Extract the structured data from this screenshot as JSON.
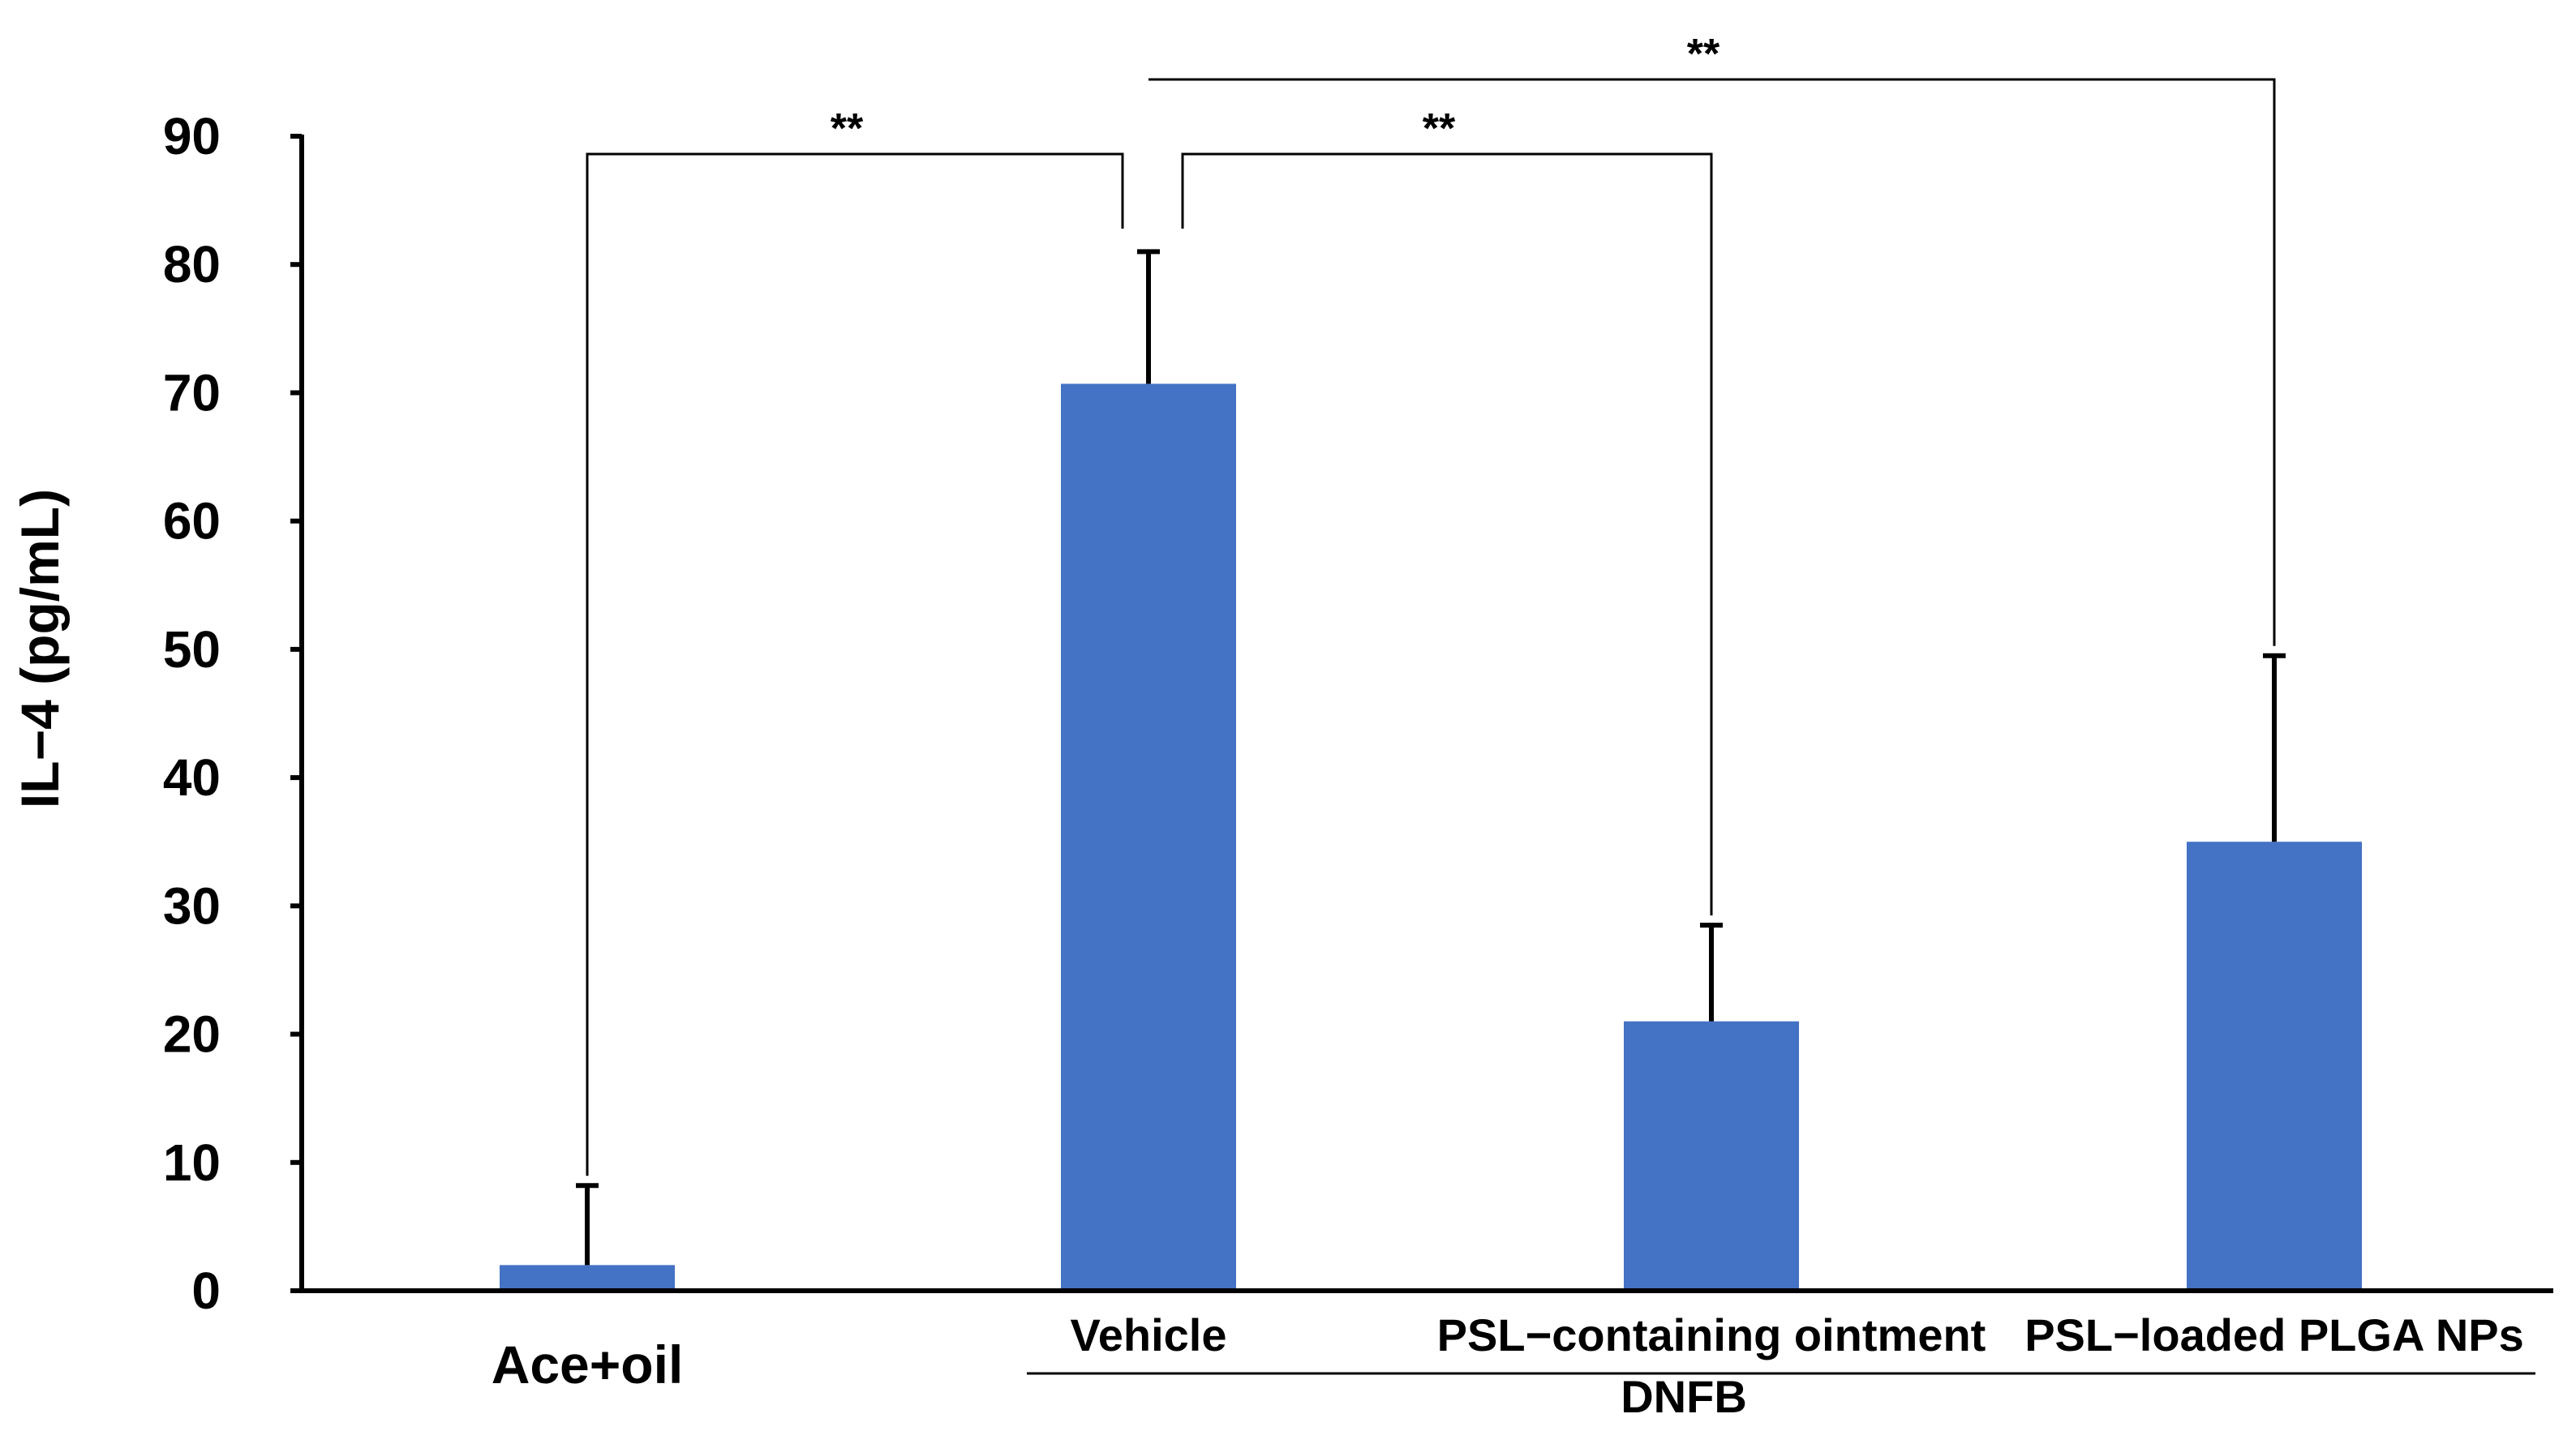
{
  "chart_data": {
    "type": "bar",
    "categories": [
      "Ace+oil",
      "Vehicle",
      "PSL−containing ointment",
      "PSL−loaded PLGA NPs"
    ],
    "values": [
      2,
      70.7,
      21,
      35
    ],
    "errors": [
      6.2,
      10.3,
      7.5,
      14.5
    ],
    "ylabel": "IL−4 (pg/mL)",
    "ylim": [
      0,
      90
    ],
    "yticks": [
      0,
      10,
      20,
      30,
      40,
      50,
      60,
      70,
      80,
      90
    ],
    "group_label": "DNFB",
    "group_members": [
      1,
      2,
      3
    ],
    "bar_color": "#4472C4",
    "significance": [
      {
        "from": 0,
        "to": 1,
        "label": "**"
      },
      {
        "from": 1,
        "to": 2,
        "label": "**"
      },
      {
        "from": 1,
        "to": 3,
        "label": "**"
      }
    ]
  }
}
